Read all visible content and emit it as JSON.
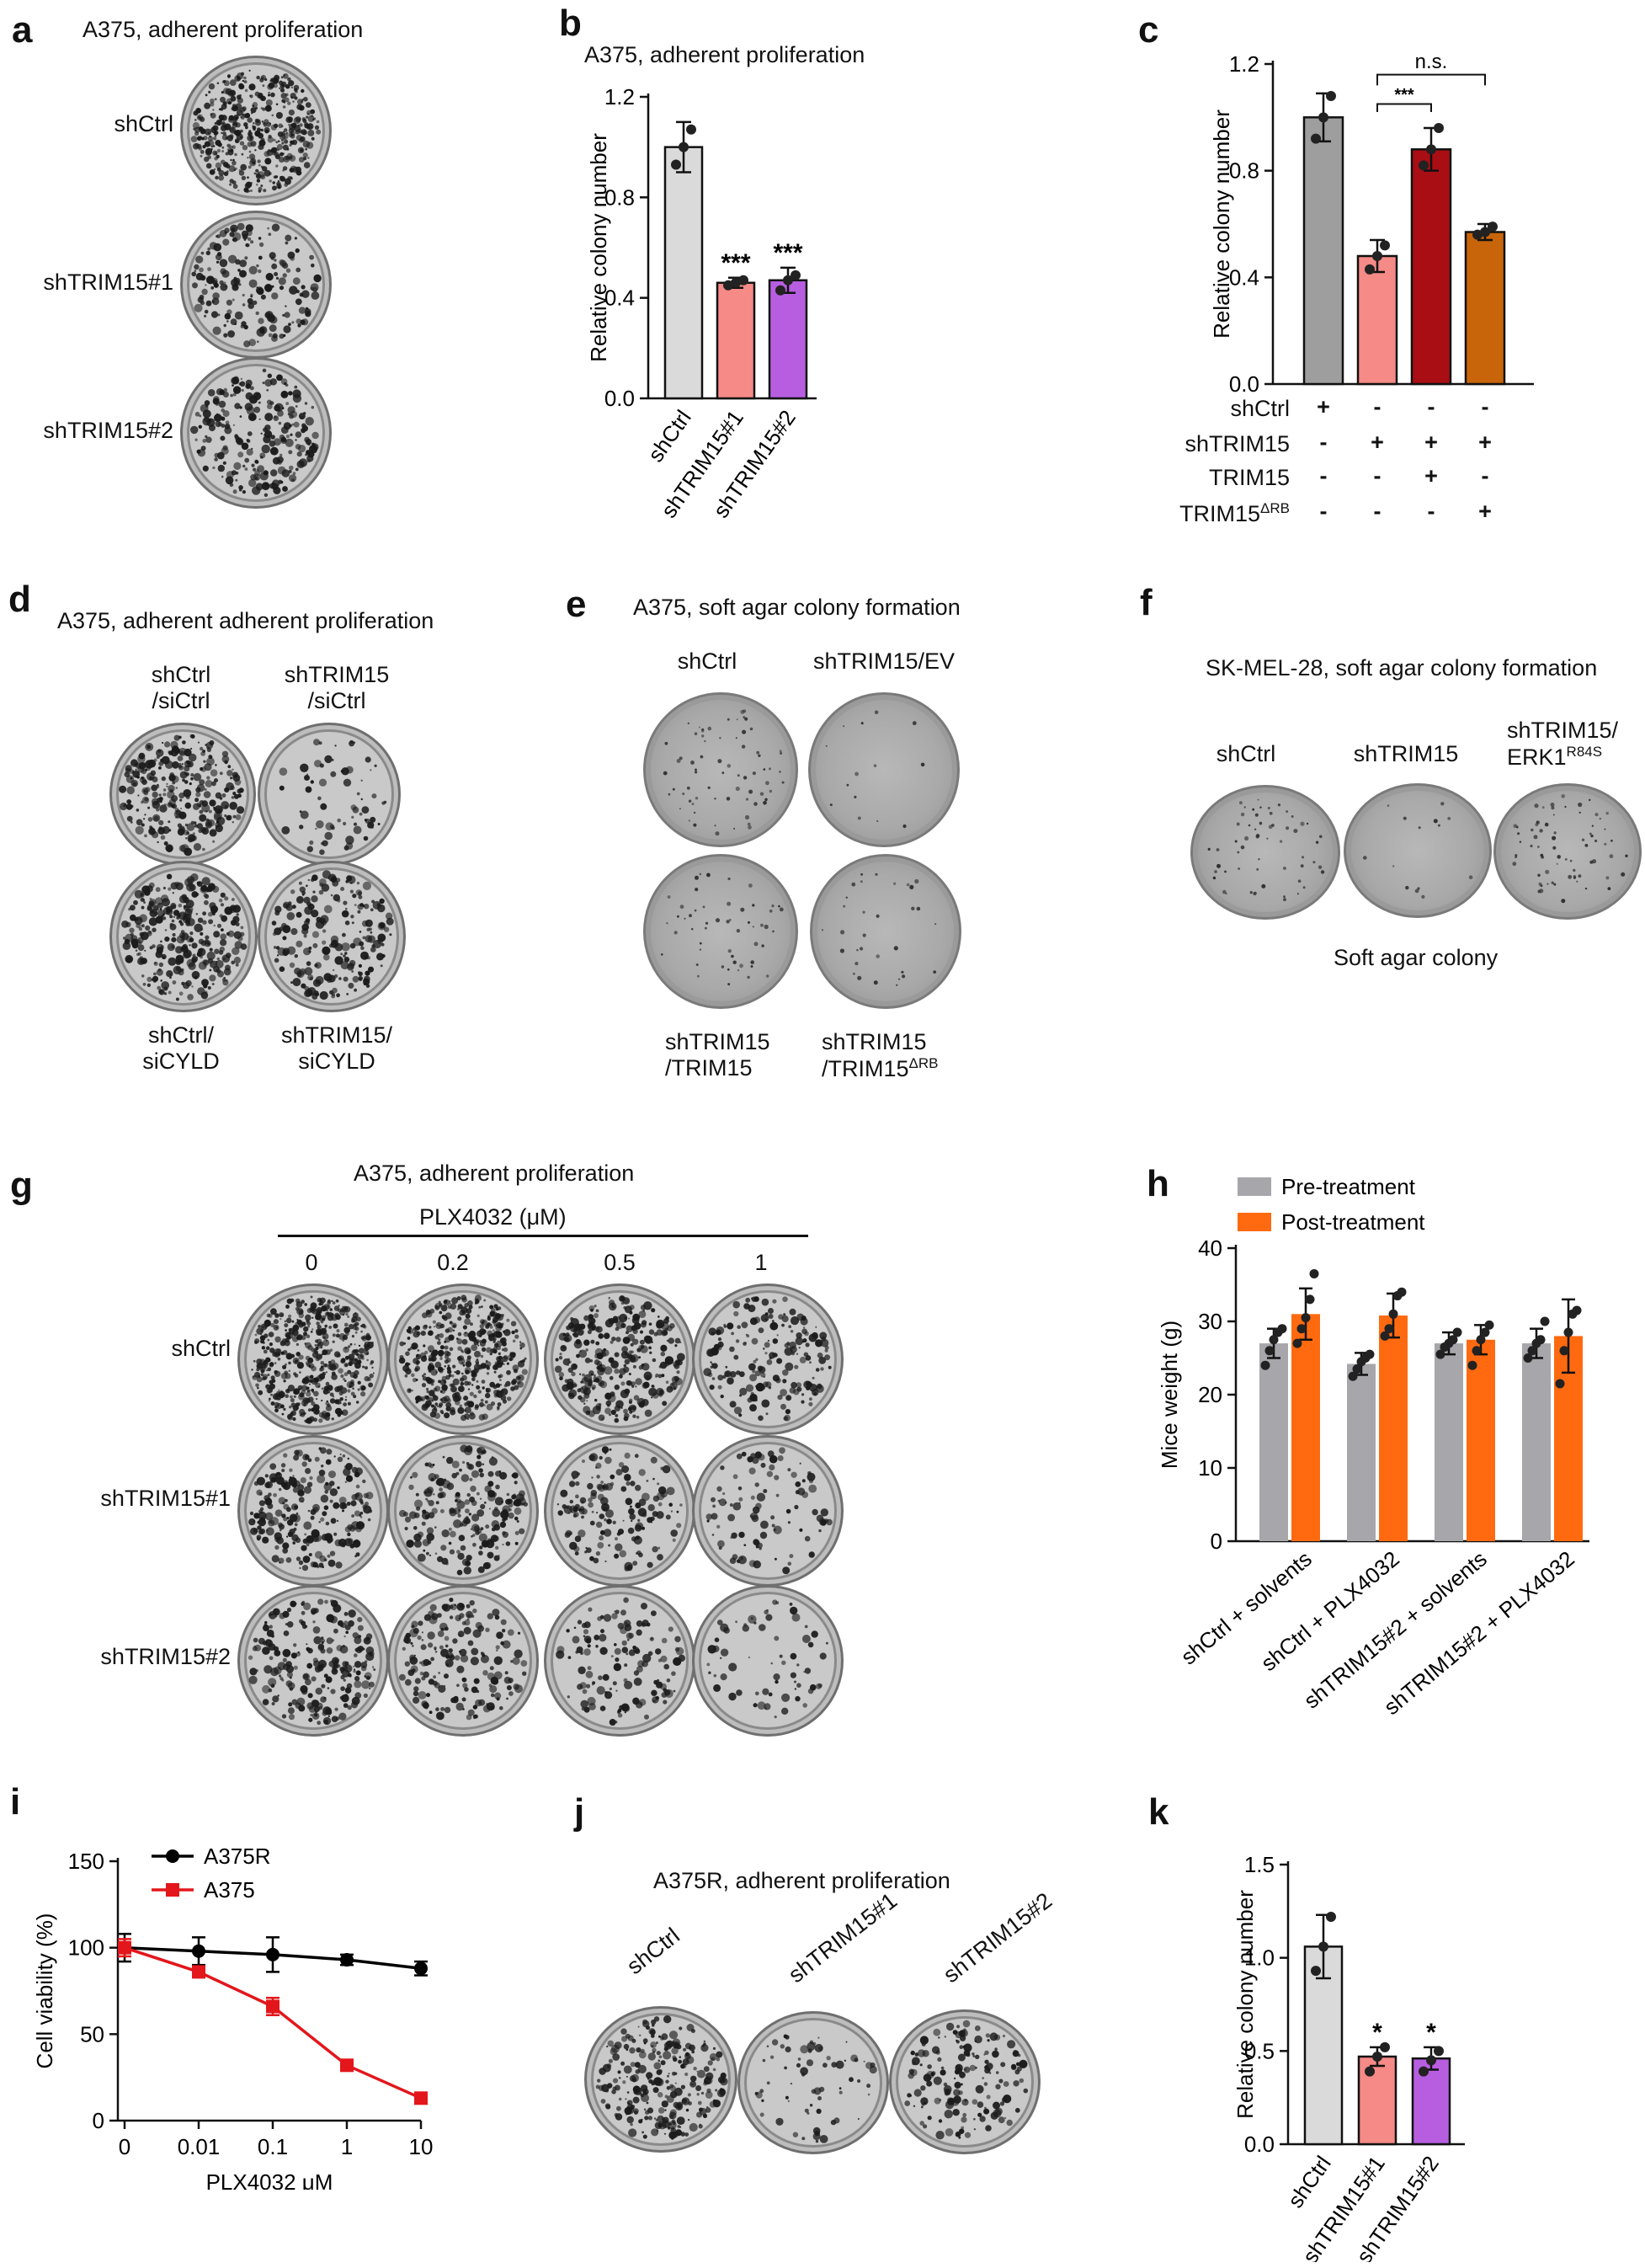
{
  "panels": {
    "a": {
      "label": "a",
      "title": "A375, adherent proliferation",
      "rows": [
        "shCtrl",
        "shTRIM15#1",
        "shTRIM15#2"
      ],
      "density": [
        0.9,
        0.35,
        0.45
      ]
    },
    "b": {
      "label": "b"
    },
    "c": {
      "label": "c",
      "matrix_rows": [
        {
          "name": "shCtrl",
          "marks": [
            "+",
            "-",
            "-",
            "-"
          ]
        },
        {
          "name": "shTRIM15",
          "marks": [
            "-",
            "+",
            "+",
            "+"
          ]
        },
        {
          "name": "TRIM15",
          "marks": [
            "-",
            "-",
            "+",
            "-"
          ]
        },
        {
          "name": "TRIM15",
          "sup": "ΔRB",
          "marks": [
            "-",
            "-",
            "-",
            "+"
          ]
        }
      ]
    },
    "d": {
      "label": "d",
      "title": "A375, adherent adherent proliferation",
      "top_left": [
        "shCtrl",
        "/siCtrl"
      ],
      "top_right": [
        "shTRIM15",
        "/siCtrl"
      ],
      "bottom_left": [
        "shCtrl/",
        "siCYLD"
      ],
      "bottom_right": [
        "shTRIM15/",
        "siCYLD"
      ],
      "density": [
        0.55,
        0.12,
        0.6,
        0.4
      ]
    },
    "e": {
      "label": "e",
      "title": "A375, soft agar colony formation",
      "top_left": "shCtrl",
      "top_right": "shTRIM15/EV",
      "bottom_left": [
        "shTRIM15",
        "/TRIM15"
      ],
      "bottom_right": [
        "shTRIM15",
        "/TRIM15"
      ],
      "bottom_right_sup": "ΔRB",
      "density": [
        0.25,
        0.03,
        0.18,
        0.1
      ]
    },
    "f": {
      "label": "f",
      "title": "SK-MEL-28, soft agar colony formation",
      "dishes": [
        "shCtrl",
        "shTRIM15"
      ],
      "dish3": [
        "shTRIM15/",
        "ERK1"
      ],
      "dish3_sup": "R84S",
      "footer": "Soft agar colony",
      "density": [
        0.2,
        0.03,
        0.25
      ]
    },
    "g": {
      "label": "g",
      "title": "A375, adherent proliferation",
      "drug": "PLX4032 (μM)",
      "doses": [
        "0",
        "0.2",
        "0.5",
        "1"
      ],
      "rows": [
        "shCtrl",
        "shTRIM15#1",
        "shTRIM15#2"
      ],
      "density": [
        [
          1.0,
          0.9,
          0.6,
          0.35
        ],
        [
          0.45,
          0.4,
          0.3,
          0.18
        ],
        [
          0.45,
          0.35,
          0.25,
          0.12
        ]
      ]
    },
    "h": {
      "label": "h"
    },
    "i": {
      "label": "i"
    },
    "j": {
      "label": "j",
      "title": "A375R, adherent proliferation",
      "dishes": [
        "shCtrl",
        "shTRIM15#1",
        "shTRIM15#2"
      ],
      "density": [
        0.5,
        0.12,
        0.3
      ]
    },
    "k": {
      "label": "k"
    }
  },
  "chart_data": [
    {
      "id": "b",
      "type": "bar",
      "title": "A375, adherent proliferation",
      "categories": [
        "shCtrl",
        "shTRIM15#1",
        "shTRIM15#2"
      ],
      "values": [
        1.0,
        0.46,
        0.47
      ],
      "errors": [
        0.1,
        0.02,
        0.05
      ],
      "points": [
        [
          0.93,
          1.0,
          1.07
        ],
        [
          0.45,
          0.46,
          0.47
        ],
        [
          0.43,
          0.47,
          0.49
        ]
      ],
      "annotations": [
        "",
        "***",
        "***"
      ],
      "colors": [
        "#dadada",
        "#f58a86",
        "#b75ee0"
      ],
      "ylabel": "Relative colony number",
      "ylim": [
        0,
        1.2
      ],
      "yticks": [
        "0.0",
        "0.4",
        "0.8",
        "1.2"
      ]
    },
    {
      "id": "c",
      "type": "bar",
      "title": "",
      "categories": [
        "1",
        "2",
        "3",
        "4"
      ],
      "values": [
        1.0,
        0.48,
        0.88,
        0.57
      ],
      "errors": [
        0.09,
        0.06,
        0.08,
        0.03
      ],
      "points": [
        [
          0.92,
          1.0,
          1.08
        ],
        [
          0.43,
          0.48,
          0.52
        ],
        [
          0.82,
          0.88,
          0.96
        ],
        [
          0.56,
          0.57,
          0.59
        ]
      ],
      "colors": [
        "#9e9e9e",
        "#f58a86",
        "#a90e14",
        "#c8640a"
      ],
      "ylabel": "Relative colony number",
      "ylim": [
        0,
        1.2
      ],
      "yticks": [
        "0.0",
        "0.4",
        "0.8",
        "1.2"
      ],
      "significance": [
        {
          "bars": [
            2,
            3
          ],
          "label": "***"
        },
        {
          "bars": [
            2,
            4
          ],
          "label": "n.s."
        }
      ]
    },
    {
      "id": "h",
      "type": "bar",
      "categories": [
        "shCtrl + solvents",
        "shCtrl + PLX4032",
        "shTRIM15#2 + solvents",
        "shTRIM15#2 + PLX4032"
      ],
      "series": [
        {
          "name": "Pre-treatment",
          "color": "#a6a6ab",
          "values": [
            27,
            24.2,
            27,
            27
          ],
          "errors": [
            2,
            1.5,
            1.5,
            2
          ],
          "points": [
            [
              24,
              26,
              27.5,
              28.5,
              29
            ],
            [
              22.5,
              23.5,
              24.5,
              25,
              25.5
            ],
            [
              25.5,
              26.5,
              27,
              27.5,
              28.5
            ],
            [
              25,
              26,
              27,
              27.5,
              30
            ]
          ]
        },
        {
          "name": "Post-treatment",
          "color": "#ff6a10",
          "values": [
            31,
            30.8,
            27.5,
            28
          ],
          "errors": [
            3.5,
            3,
            2,
            5
          ],
          "points": [
            [
              27,
              29,
              30.5,
              33,
              36.5
            ],
            [
              28,
              29,
              31,
              33.5,
              34
            ],
            [
              24,
              26,
              27.5,
              28.5,
              29.5
            ],
            [
              21.5,
              26,
              28.5,
              31,
              31.5
            ]
          ]
        }
      ],
      "ylabel": "Mice weight (g)",
      "ylim": [
        0,
        40
      ],
      "yticks": [
        "0",
        "10",
        "20",
        "30",
        "40"
      ]
    },
    {
      "id": "i",
      "type": "line",
      "x": [
        "0",
        "0.01",
        "0.1",
        "1",
        "10"
      ],
      "series": [
        {
          "name": "A375R",
          "color": "#000000",
          "marker": "circle",
          "values": [
            100,
            98,
            96,
            93,
            88
          ],
          "errors": [
            8,
            8,
            10,
            3,
            4
          ]
        },
        {
          "name": "A375",
          "color": "#e3161b",
          "marker": "square",
          "values": [
            100,
            86,
            66,
            32,
            13
          ],
          "errors": [
            5,
            3,
            5,
            2,
            2
          ]
        }
      ],
      "xlabel": "PLX4032 μM",
      "ylabel": "Cell viability (%)",
      "ylim": [
        0,
        150
      ],
      "yticks": [
        "0",
        "50",
        "100",
        "150"
      ]
    },
    {
      "id": "k",
      "type": "bar",
      "categories": [
        "shCtrl",
        "shTRIM15#1",
        "shTRIM15#2"
      ],
      "values": [
        1.06,
        0.47,
        0.46
      ],
      "errors": [
        0.17,
        0.05,
        0.06
      ],
      "points": [
        [
          0.93,
          1.06,
          1.22
        ],
        [
          0.39,
          0.47,
          0.52
        ],
        [
          0.39,
          0.45,
          0.5
        ]
      ],
      "annotations": [
        "",
        "*",
        "*"
      ],
      "colors": [
        "#dadada",
        "#f58a86",
        "#b75ee0"
      ],
      "ylabel": "Relative colony number",
      "ylim": [
        0,
        1.5
      ],
      "yticks": [
        "0.0",
        "0.5",
        "1.0",
        "1.5"
      ]
    }
  ]
}
